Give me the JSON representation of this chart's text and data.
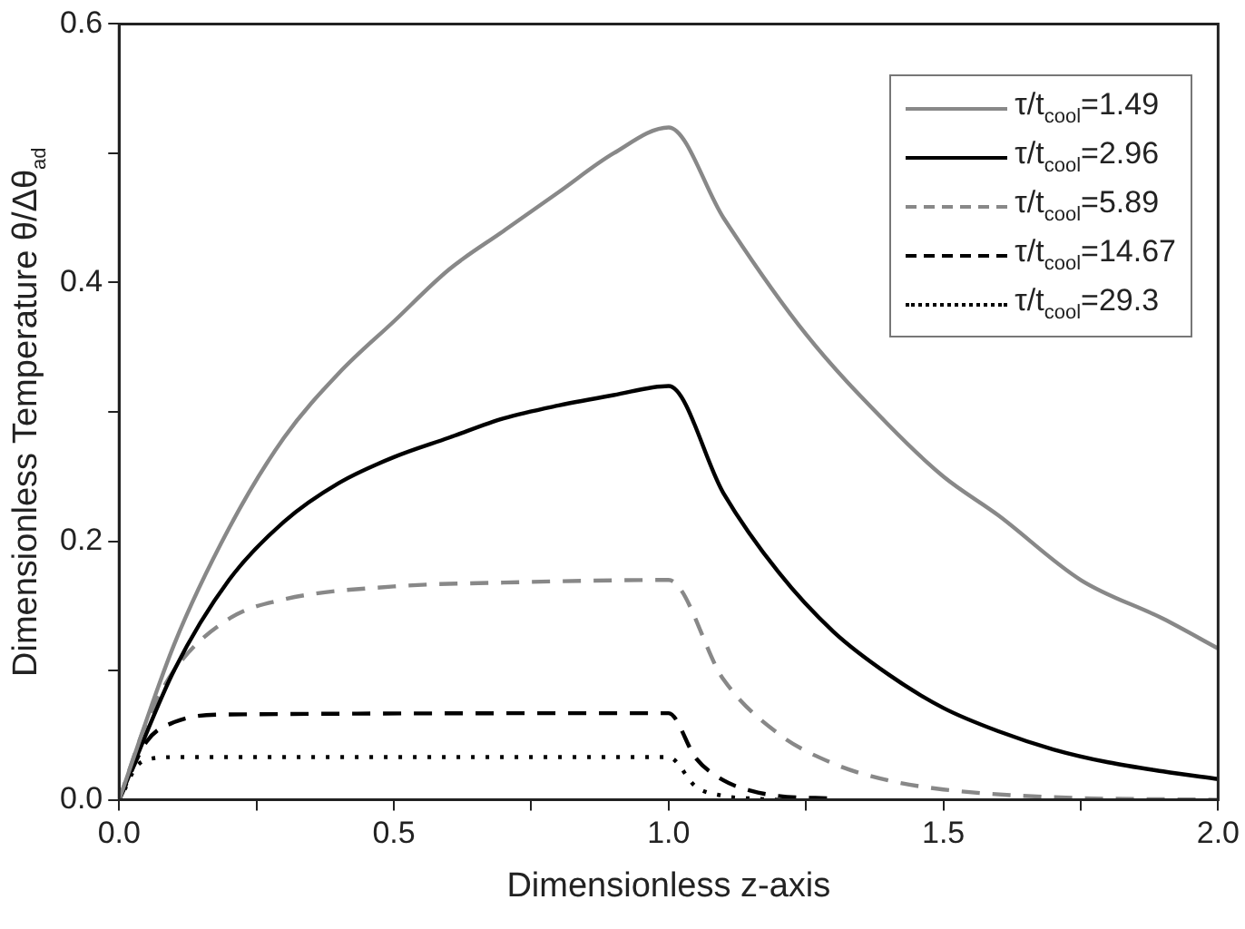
{
  "chart_data": {
    "type": "line",
    "xlabel": "Dimensionless z-axis",
    "ylabel": "Dimensionless Temperature θ/Δθ$_{ad}$",
    "xlim": [
      0,
      2
    ],
    "ylim": [
      0,
      0.6
    ],
    "xticks": [
      {
        "value": 0,
        "label": "0.0"
      },
      {
        "value": 0.25,
        "label": null
      },
      {
        "value": 0.5,
        "label": "0.5"
      },
      {
        "value": 0.75,
        "label": null
      },
      {
        "value": 1,
        "label": "1.0"
      },
      {
        "value": 1.25,
        "label": null
      },
      {
        "value": 1.5,
        "label": "1.5"
      },
      {
        "value": 1.75,
        "label": null
      },
      {
        "value": 2,
        "label": "2.0"
      }
    ],
    "yticks": [
      {
        "value": 0,
        "label": "0.0"
      },
      {
        "value": 0.1,
        "label": null
      },
      {
        "value": 0.2,
        "label": "0.2"
      },
      {
        "value": 0.3,
        "label": null
      },
      {
        "value": 0.4,
        "label": "0.4"
      },
      {
        "value": 0.5,
        "label": null
      },
      {
        "value": 0.6,
        "label": "0.6"
      }
    ],
    "grid": false,
    "legend": "top right",
    "marker": "none",
    "series": [
      {
        "name": "τ/t$_{cool}$=1.49",
        "color": "#888888",
        "line_style": "solid",
        "x": [
          0,
          0.1,
          0.2,
          0.3,
          0.4,
          0.5,
          0.6,
          0.7,
          0.8,
          0.9,
          1.0,
          1.1,
          1.25,
          1.4,
          1.5,
          1.6,
          1.75,
          1.9,
          2.0
        ],
        "values": [
          0,
          0.12,
          0.21,
          0.28,
          0.33,
          0.37,
          0.41,
          0.44,
          0.47,
          0.5,
          0.52,
          0.45,
          0.36,
          0.29,
          0.25,
          0.22,
          0.17,
          0.14,
          0.117
        ]
      },
      {
        "name": "τ/t$_{cool}$=2.96",
        "color": "#000000",
        "line_style": "solid",
        "x": [
          0,
          0.1,
          0.2,
          0.3,
          0.4,
          0.5,
          0.6,
          0.7,
          0.8,
          0.9,
          1.0,
          1.1,
          1.2,
          1.3,
          1.4,
          1.5,
          1.6,
          1.7,
          1.8,
          1.9,
          2.0
        ],
        "values": [
          0,
          0.1,
          0.17,
          0.215,
          0.245,
          0.265,
          0.28,
          0.295,
          0.305,
          0.313,
          0.32,
          0.237,
          0.176,
          0.13,
          0.097,
          0.071,
          0.053,
          0.039,
          0.029,
          0.022,
          0.016
        ]
      },
      {
        "name": "τ/t$_{cool}$=5.89",
        "color": "#888888",
        "line_style": "dashed",
        "x": [
          0,
          0.05,
          0.1,
          0.2,
          0.3,
          0.5,
          0.7,
          1.0,
          1.1,
          1.2,
          1.3,
          1.4,
          1.5,
          1.7,
          2.0
        ],
        "values": [
          0,
          0.06,
          0.1,
          0.14,
          0.155,
          0.165,
          0.168,
          0.17,
          0.093,
          0.051,
          0.028,
          0.015,
          0.008,
          0.002,
          0
        ]
      },
      {
        "name": "τ/t$_{cool}$=14.67",
        "color": "#000000",
        "line_style": "dashed",
        "x": [
          0,
          0.05,
          0.1,
          0.2,
          1.0,
          1.05,
          1.1,
          1.15,
          1.2,
          1.3
        ],
        "values": [
          0,
          0.045,
          0.06,
          0.066,
          0.067,
          0.032,
          0.015,
          0.007,
          0.003,
          0.001
        ]
      },
      {
        "name": "τ/t$_{cool}$=29.3",
        "color": "#000000",
        "line_style": "dotted",
        "x": [
          0.01,
          0.03,
          0.05,
          0.1,
          1.0,
          1.05,
          1.1,
          1.15,
          1.2
        ],
        "values": [
          0.008,
          0.025,
          0.031,
          0.033,
          0.033,
          0.01,
          0.003,
          0.001,
          0
        ]
      }
    ]
  }
}
